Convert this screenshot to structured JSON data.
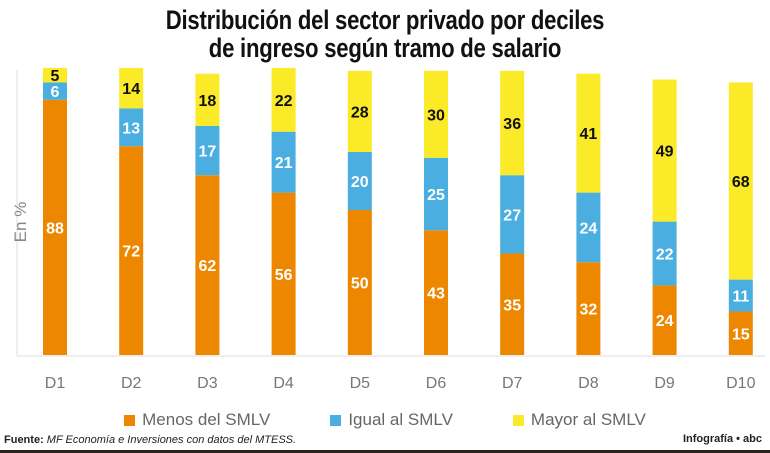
{
  "title_line1": "Distribución del sector privado por deciles",
  "title_line2": "de ingreso según tramo de salario",
  "colors": {
    "menos": "#ee8700",
    "igual": "#4aaee0",
    "mayor": "#fbea27"
  },
  "chart_data": {
    "type": "bar",
    "stacked": true,
    "title": "Distribución del sector privado por deciles de ingreso según tramo de salario",
    "ylabel": "En %",
    "xlabel": "",
    "categories": [
      "D1",
      "D2",
      "D3",
      "D4",
      "D5",
      "D6",
      "D7",
      "D8",
      "D9",
      "D10"
    ],
    "series": [
      {
        "name": "Menos del SMLV",
        "values": [
          88,
          72,
          62,
          56,
          50,
          43,
          35,
          32,
          24,
          15
        ]
      },
      {
        "name": "Igual al SMLV",
        "values": [
          6,
          13,
          17,
          21,
          20,
          25,
          27,
          24,
          22,
          11
        ]
      },
      {
        "name": "Mayor al SMLV",
        "values": [
          5,
          14,
          18,
          22,
          28,
          30,
          36,
          41,
          49,
          68
        ]
      }
    ],
    "ylim": [
      0,
      100
    ],
    "grid": false,
    "legend": "bottom"
  },
  "footer": {
    "source_label": "Fuente:",
    "source_text": "MF Economía e Inversiones con datos del MTESS.",
    "credit": "Infografía • abc"
  }
}
